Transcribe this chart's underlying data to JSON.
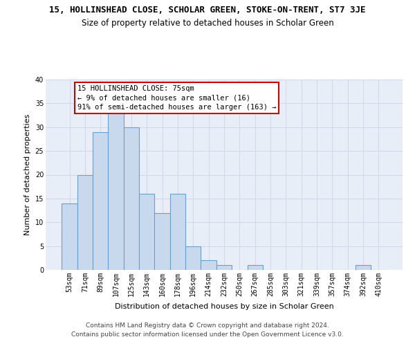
{
  "title1": "15, HOLLINSHEAD CLOSE, SCHOLAR GREEN, STOKE-ON-TRENT, ST7 3JE",
  "title2": "Size of property relative to detached houses in Scholar Green",
  "xlabel": "Distribution of detached houses by size in Scholar Green",
  "ylabel": "Number of detached properties",
  "categories": [
    "53sqm",
    "71sqm",
    "89sqm",
    "107sqm",
    "125sqm",
    "143sqm",
    "160sqm",
    "178sqm",
    "196sqm",
    "214sqm",
    "232sqm",
    "250sqm",
    "267sqm",
    "285sqm",
    "303sqm",
    "321sqm",
    "339sqm",
    "357sqm",
    "374sqm",
    "392sqm",
    "410sqm"
  ],
  "values": [
    14,
    20,
    29,
    33,
    30,
    16,
    12,
    16,
    5,
    2,
    1,
    0,
    1,
    0,
    0,
    0,
    0,
    0,
    0,
    1,
    0
  ],
  "bar_color": "#c9d9ed",
  "bar_edge_color": "#6b9ecb",
  "annotation_box_text": "15 HOLLINSHEAD CLOSE: 75sqm\n← 9% of detached houses are smaller (16)\n91% of semi-detached houses are larger (163) →",
  "annotation_box_color": "#ffffff",
  "annotation_box_edge_color": "#cc0000",
  "ylim": [
    0,
    40
  ],
  "yticks": [
    0,
    5,
    10,
    15,
    20,
    25,
    30,
    35,
    40
  ],
  "grid_color": "#d0d8e8",
  "bg_color": "#e8eef8",
  "footer1": "Contains HM Land Registry data © Crown copyright and database right 2024.",
  "footer2": "Contains public sector information licensed under the Open Government Licence v3.0.",
  "title1_fontsize": 9,
  "title2_fontsize": 8.5,
  "xlabel_fontsize": 8,
  "ylabel_fontsize": 8,
  "tick_fontsize": 7,
  "footer_fontsize": 6.5,
  "ann_fontsize": 7.5
}
